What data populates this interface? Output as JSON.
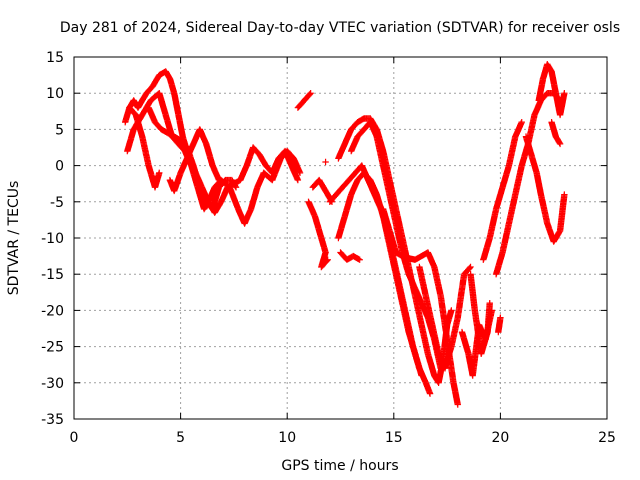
{
  "chart_data": {
    "type": "scatter",
    "title": "Day 281 of 2024, Sidereal Day-to-day VTEC variation (SDTVAR) for receiver osls",
    "xlabel": "GPS time / hours",
    "ylabel": "SDTVAR / TECUs",
    "xlim": [
      0,
      25
    ],
    "ylim": [
      -35,
      15
    ],
    "xticks": [
      0,
      5,
      10,
      15,
      20,
      25
    ],
    "yticks": [
      -35,
      -30,
      -25,
      -20,
      -15,
      -10,
      -5,
      0,
      5,
      10,
      15
    ],
    "grid": true,
    "marker": "plus",
    "color": "#ff0000",
    "series": [
      {
        "values": [
          [
            2.4,
            6
          ],
          [
            2.6,
            8
          ],
          [
            2.8,
            9
          ],
          [
            3.0,
            8
          ],
          [
            3.2,
            9
          ],
          [
            3.4,
            10
          ],
          [
            3.7,
            11
          ],
          [
            4.0,
            12.5
          ],
          [
            4.3,
            13
          ],
          [
            4.5,
            12
          ],
          [
            4.7,
            10
          ],
          [
            4.9,
            7
          ],
          [
            5.1,
            4
          ],
          [
            5.4,
            1
          ],
          [
            5.7,
            -1
          ],
          [
            6.0,
            -3
          ],
          [
            6.3,
            -5
          ],
          [
            6.6,
            -6.5
          ],
          [
            6.9,
            -5
          ],
          [
            7.2,
            -3
          ],
          [
            7.5,
            -2.5
          ],
          [
            7.8,
            -2
          ],
          [
            8.1,
            0
          ],
          [
            8.4,
            2.5
          ],
          [
            8.7,
            1.5
          ],
          [
            9.0,
            0
          ],
          [
            9.3,
            -1
          ],
          [
            9.6,
            1
          ],
          [
            9.9,
            2
          ],
          [
            10.2,
            0
          ],
          [
            10.5,
            -2
          ]
        ]
      },
      {
        "values": [
          [
            2.6,
            8
          ],
          [
            2.9,
            7
          ],
          [
            3.2,
            4
          ],
          [
            3.5,
            0
          ],
          [
            3.8,
            -3
          ],
          [
            4.0,
            -1
          ]
        ]
      },
      {
        "values": [
          [
            2.5,
            2
          ],
          [
            2.8,
            5
          ],
          [
            3.2,
            7
          ],
          [
            3.6,
            9
          ],
          [
            4.0,
            10
          ],
          [
            4.3,
            7
          ],
          [
            4.6,
            4
          ],
          [
            4.9,
            3
          ],
          [
            5.2,
            2
          ],
          [
            5.5,
            0
          ],
          [
            5.8,
            -3
          ],
          [
            6.1,
            -6
          ],
          [
            6.3,
            -5
          ],
          [
            6.6,
            -3
          ],
          [
            6.9,
            -2
          ],
          [
            7.3,
            -3
          ],
          [
            7.7,
            -6
          ],
          [
            8.0,
            -8
          ],
          [
            8.3,
            -6
          ],
          [
            8.6,
            -3
          ],
          [
            8.9,
            -1
          ],
          [
            9.3,
            -2
          ],
          [
            9.7,
            1
          ],
          [
            10.0,
            2
          ],
          [
            10.3,
            1
          ],
          [
            10.6,
            -1
          ]
        ]
      },
      {
        "values": [
          [
            3.5,
            8
          ],
          [
            3.8,
            6
          ],
          [
            4.1,
            5
          ],
          [
            4.4,
            4.5
          ],
          [
            4.7,
            4
          ],
          [
            5.0,
            3.5
          ],
          [
            5.3,
            2.5
          ],
          [
            5.6,
            0
          ],
          [
            5.9,
            -3
          ],
          [
            6.2,
            -5
          ],
          [
            6.5,
            -6
          ],
          [
            6.8,
            -3
          ],
          [
            7.1,
            -2
          ],
          [
            7.4,
            -2
          ],
          [
            7.6,
            -3
          ]
        ]
      },
      {
        "values": [
          [
            4.5,
            -2
          ],
          [
            4.7,
            -3.5
          ],
          [
            5.0,
            -1
          ],
          [
            5.3,
            1
          ],
          [
            5.6,
            3
          ],
          [
            5.9,
            5
          ],
          [
            6.2,
            3
          ],
          [
            6.5,
            0
          ],
          [
            6.8,
            -2
          ]
        ]
      },
      {
        "values": [
          [
            10.5,
            8
          ],
          [
            10.8,
            9
          ],
          [
            11.1,
            10
          ]
        ]
      },
      {
        "values": [
          [
            11.0,
            -5
          ],
          [
            11.3,
            -7
          ],
          [
            11.6,
            -10
          ],
          [
            11.8,
            -12
          ],
          [
            11.6,
            -14
          ],
          [
            11.9,
            -13
          ]
        ]
      },
      {
        "values": [
          [
            11.2,
            -3
          ],
          [
            11.5,
            -2
          ],
          [
            11.9,
            -4
          ],
          [
            12.1,
            -5
          ]
        ]
      },
      {
        "values": [
          [
            11.8,
            0.5
          ]
        ]
      },
      {
        "values": [
          [
            12.0,
            -5
          ],
          [
            12.3,
            -4
          ],
          [
            12.6,
            -3
          ],
          [
            12.9,
            -2
          ],
          [
            13.2,
            -1
          ],
          [
            13.5,
            0
          ],
          [
            13.8,
            -2
          ],
          [
            14.1,
            -4
          ],
          [
            14.4,
            -6
          ],
          [
            14.7,
            -9
          ],
          [
            15.0,
            -13
          ],
          [
            15.3,
            -17
          ],
          [
            15.6,
            -21
          ],
          [
            15.9,
            -25
          ],
          [
            16.2,
            -28
          ],
          [
            16.5,
            -30
          ],
          [
            16.7,
            -31.5
          ]
        ]
      },
      {
        "values": [
          [
            12.4,
            -10
          ],
          [
            12.7,
            -7
          ],
          [
            13.0,
            -4
          ],
          [
            13.3,
            -2
          ],
          [
            13.6,
            -1
          ],
          [
            13.9,
            -2
          ],
          [
            14.2,
            -4
          ],
          [
            14.5,
            -7
          ],
          [
            14.8,
            -11
          ],
          [
            15.1,
            -15
          ],
          [
            15.4,
            -19
          ],
          [
            15.7,
            -23
          ],
          [
            16.0,
            -26
          ],
          [
            16.3,
            -29
          ]
        ]
      },
      {
        "values": [
          [
            12.5,
            -12
          ],
          [
            12.8,
            -13
          ],
          [
            13.1,
            -12.5
          ],
          [
            13.4,
            -13
          ]
        ]
      },
      {
        "values": [
          [
            12.4,
            1
          ],
          [
            12.7,
            3
          ],
          [
            13.0,
            5
          ],
          [
            13.3,
            6
          ],
          [
            13.6,
            6.5
          ],
          [
            13.9,
            6.5
          ],
          [
            14.2,
            5
          ],
          [
            14.5,
            2
          ],
          [
            14.8,
            -2
          ],
          [
            15.1,
            -6
          ],
          [
            15.4,
            -10
          ],
          [
            15.7,
            -14
          ],
          [
            16.0,
            -18
          ],
          [
            16.3,
            -22
          ],
          [
            16.6,
            -26
          ],
          [
            16.9,
            -29
          ],
          [
            17.1,
            -30
          ],
          [
            17.3,
            -27
          ],
          [
            17.5,
            -22
          ],
          [
            17.7,
            -20
          ]
        ]
      },
      {
        "values": [
          [
            13.0,
            2
          ],
          [
            13.3,
            4
          ],
          [
            13.6,
            5
          ],
          [
            13.9,
            6
          ],
          [
            14.2,
            4
          ],
          [
            14.5,
            0
          ],
          [
            14.8,
            -4
          ],
          [
            15.1,
            -8
          ],
          [
            15.4,
            -12
          ],
          [
            15.7,
            -15
          ],
          [
            16.0,
            -17
          ],
          [
            16.3,
            -19
          ],
          [
            16.6,
            -21
          ],
          [
            16.9,
            -24
          ],
          [
            17.2,
            -28
          ]
        ]
      },
      {
        "values": [
          [
            14.5,
            -6
          ],
          [
            14.8,
            -9
          ],
          [
            15.1,
            -12
          ],
          [
            15.4,
            -12.5
          ],
          [
            15.7,
            -12.8
          ],
          [
            16.0,
            -13
          ],
          [
            16.3,
            -12.5
          ],
          [
            16.6,
            -12
          ],
          [
            16.9,
            -14
          ],
          [
            17.2,
            -18
          ],
          [
            17.5,
            -24
          ],
          [
            17.8,
            -30
          ],
          [
            18.0,
            -33
          ]
        ]
      },
      {
        "values": [
          [
            16.2,
            -14
          ],
          [
            16.5,
            -18
          ],
          [
            16.8,
            -22
          ],
          [
            17.1,
            -26
          ],
          [
            17.4,
            -28
          ],
          [
            17.7,
            -25
          ],
          [
            18.0,
            -21
          ],
          [
            18.3,
            -15
          ],
          [
            18.6,
            -14
          ]
        ]
      },
      {
        "values": [
          [
            18.2,
            -23
          ],
          [
            18.5,
            -26
          ],
          [
            18.7,
            -29
          ],
          [
            19.0,
            -22
          ],
          [
            19.3,
            -24
          ],
          [
            19.6,
            -20
          ]
        ]
      },
      {
        "values": [
          [
            18.6,
            -15
          ],
          [
            18.8,
            -20
          ],
          [
            19.1,
            -26
          ],
          [
            19.4,
            -23
          ],
          [
            19.5,
            -19
          ]
        ]
      },
      {
        "values": [
          [
            19.9,
            -23
          ],
          [
            20.0,
            -21
          ]
        ]
      },
      {
        "values": [
          [
            19.2,
            -13
          ],
          [
            19.5,
            -10
          ],
          [
            19.8,
            -6
          ],
          [
            20.1,
            -3
          ],
          [
            20.4,
            0
          ],
          [
            20.7,
            4
          ],
          [
            21.0,
            6
          ]
        ]
      },
      {
        "values": [
          [
            19.8,
            -15
          ],
          [
            20.1,
            -12
          ],
          [
            20.4,
            -8
          ],
          [
            20.7,
            -4
          ],
          [
            21.0,
            0
          ],
          [
            21.3,
            3
          ],
          [
            21.6,
            7
          ],
          [
            21.9,
            9
          ],
          [
            22.2,
            10
          ],
          [
            22.5,
            10
          ],
          [
            22.8,
            9
          ]
        ]
      },
      {
        "values": [
          [
            21.2,
            4
          ],
          [
            21.5,
            1
          ],
          [
            21.7,
            -1
          ],
          [
            21.9,
            -4
          ],
          [
            22.2,
            -8
          ],
          [
            22.5,
            -10.5
          ],
          [
            22.8,
            -9
          ],
          [
            23.0,
            -4
          ]
        ]
      },
      {
        "values": [
          [
            21.8,
            9
          ],
          [
            22.0,
            12
          ],
          [
            22.2,
            14
          ],
          [
            22.4,
            13
          ],
          [
            22.6,
            10
          ],
          [
            22.8,
            7
          ],
          [
            23.0,
            10
          ]
        ]
      },
      {
        "values": [
          [
            22.4,
            6
          ],
          [
            22.6,
            4
          ],
          [
            22.8,
            3
          ]
        ]
      }
    ]
  }
}
